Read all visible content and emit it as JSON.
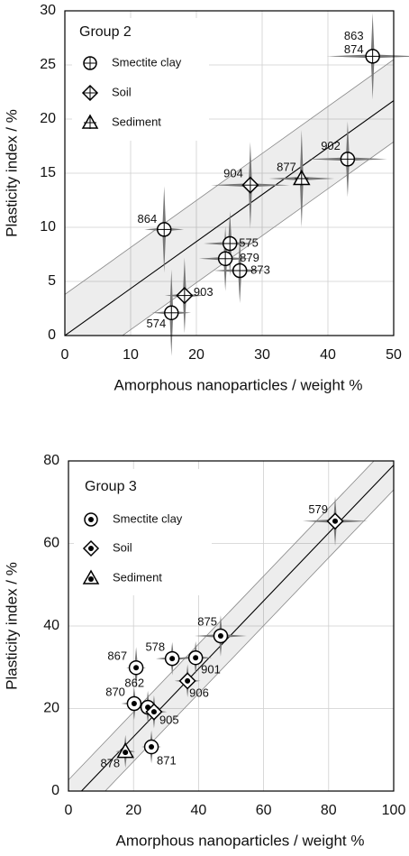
{
  "chart_data": [
    {
      "type": "scatter",
      "title": "Group 2",
      "xlabel": "Amorphous nanoparticles / weight %",
      "ylabel": "Plasticity index / %",
      "xlim": [
        0,
        50
      ],
      "ylim": [
        0,
        30
      ],
      "xticks": [
        0,
        10,
        20,
        30,
        40,
        50
      ],
      "yticks": [
        0,
        5,
        10,
        15,
        20,
        25,
        30
      ],
      "grid": true,
      "marker_inner": "cross",
      "fit_line": {
        "x": [
          0,
          50
        ],
        "y": [
          0,
          21.7
        ]
      },
      "band": {
        "x": [
          0,
          50
        ],
        "upper": [
          3.8,
          25.5
        ],
        "lower": [
          -3.8,
          17.9
        ]
      },
      "series": [
        {
          "name": "Smectite clay",
          "marker": "circle",
          "color": "#000000",
          "x": [
            46.8,
            43.0,
            15.1,
            25.1,
            24.4,
            26.6,
            16.2
          ],
          "y": [
            25.8,
            16.3,
            9.8,
            8.5,
            7.1,
            6.0,
            2.1
          ],
          "xerr": [
            7,
            6,
            3,
            4,
            4,
            4,
            3
          ],
          "yerr": [
            4,
            3.5,
            4,
            3,
            3,
            3,
            4
          ],
          "labels": [
            [
              "863",
              "874"
            ],
            [
              "902"
            ],
            [
              "864"
            ],
            [
              "575"
            ],
            [
              "879"
            ],
            [
              "873"
            ],
            [
              "574"
            ]
          ]
        },
        {
          "name": "Soil",
          "marker": "diamond",
          "color": "#000000",
          "x": [
            28.2,
            18.2
          ],
          "y": [
            13.9,
            3.7
          ],
          "xerr": [
            6,
            3
          ],
          "yerr": [
            4,
            3.5
          ],
          "labels": [
            [
              "904"
            ],
            [
              "903"
            ]
          ]
        },
        {
          "name": "Sediment",
          "marker": "triangle",
          "color": "#000000",
          "x": [
            36.0
          ],
          "y": [
            14.5
          ],
          "xerr": [
            5
          ],
          "yerr": [
            4.5
          ],
          "labels": [
            [
              "877"
            ]
          ]
        }
      ]
    },
    {
      "type": "scatter",
      "title": "Group 3",
      "xlabel": "Amorphous nanoparticles / weight %",
      "ylabel": "Plasticity index / %",
      "xlim": [
        0,
        100
      ],
      "ylim": [
        0,
        80
      ],
      "xticks": [
        0,
        20,
        40,
        60,
        80,
        100
      ],
      "yticks": [
        0,
        20,
        40,
        60,
        80
      ],
      "grid": true,
      "marker_inner": "dot",
      "fit_line": {
        "x": [
          4,
          100
        ],
        "y": [
          0,
          79
        ]
      },
      "band": {
        "x": [
          0,
          100
        ],
        "upper": [
          2.7,
          85
        ],
        "lower": [
          -9.3,
          73
        ]
      },
      "series": [
        {
          "name": "Smectite clay",
          "marker": "circle",
          "color": "#000000",
          "x": [
            46.8,
            31.9,
            39.1,
            20.8,
            20.2,
            24.4,
            25.5
          ],
          "y": [
            37.6,
            32.1,
            32.3,
            29.9,
            21.2,
            20.3,
            10.7
          ],
          "xerr": [
            8,
            5,
            5,
            3,
            4,
            4,
            3
          ],
          "yerr": [
            5,
            4,
            4,
            5,
            4,
            4,
            4
          ],
          "labels": [
            [
              "875"
            ],
            [
              "578"
            ],
            [
              "901"
            ],
            [
              "867"
            ],
            [
              "870"
            ],
            [
              "862"
            ],
            [
              "871"
            ]
          ]
        },
        {
          "name": "Soil",
          "marker": "diamond",
          "color": "#000000",
          "x": [
            82.0,
            36.6,
            26.3
          ],
          "y": [
            65.4,
            26.7,
            19.2
          ],
          "xerr": [
            10,
            4,
            4
          ],
          "yerr": [
            6,
            4,
            4
          ],
          "labels": [
            [
              "579"
            ],
            [
              "906"
            ],
            [
              "905"
            ]
          ]
        },
        {
          "name": "Sediment",
          "marker": "triangle",
          "color": "#000000",
          "x": [
            17.5
          ],
          "y": [
            9.6
          ],
          "xerr": [
            3
          ],
          "yerr": [
            4
          ],
          "labels": [
            [
              "878"
            ]
          ]
        }
      ]
    }
  ]
}
